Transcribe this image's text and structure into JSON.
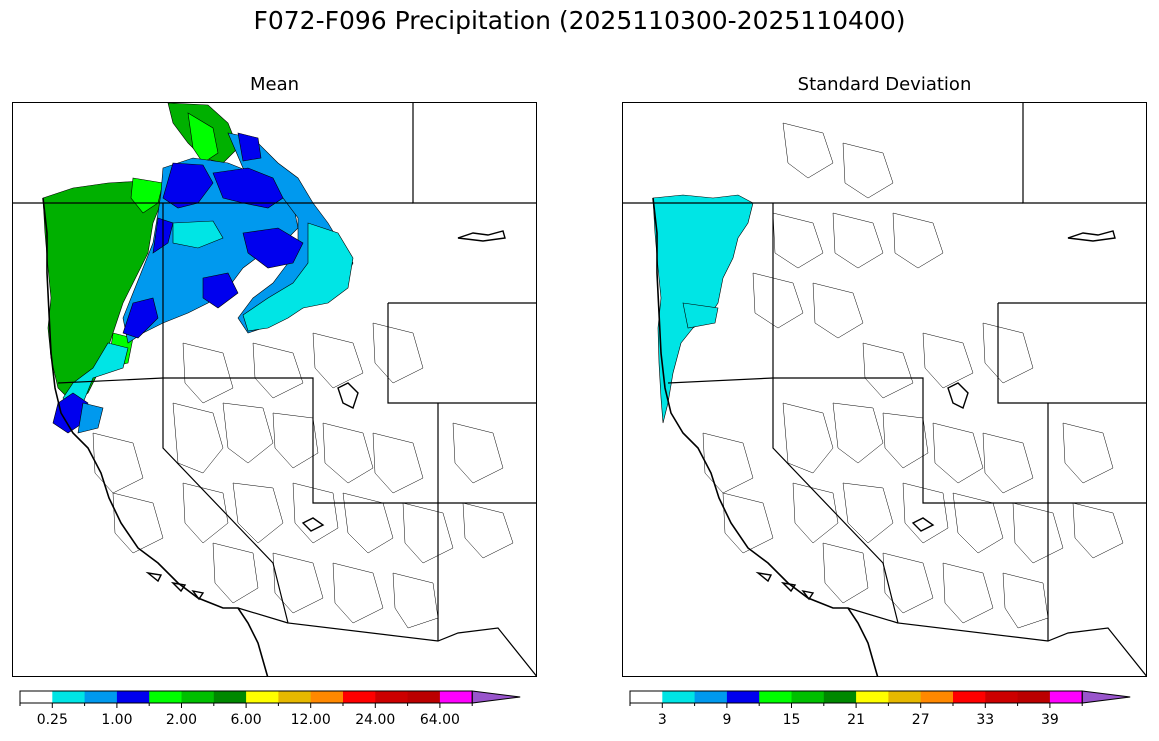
{
  "figure": {
    "title": "F072-F096 Precipitation (2025110300-2025110400)"
  },
  "panels": [
    {
      "title": "Mean",
      "colorbar": {
        "colors": [
          "#ffffff",
          "#00e5e5",
          "#0099ee",
          "#0000ee",
          "#00ff00",
          "#00c000",
          "#008800",
          "#ffff00",
          "#e6b800",
          "#ff8800",
          "#ff0000",
          "#cc0000",
          "#bb0000",
          "#ff00ff",
          "#9955cc"
        ],
        "tick_labels": [
          "0.25",
          "1.00",
          "2.00",
          "6.00",
          "12.00",
          "24.00",
          "64.00"
        ],
        "extend": "max"
      }
    },
    {
      "title": "Standard Deviation",
      "colorbar": {
        "colors": [
          "#ffffff",
          "#00e5e5",
          "#0099ee",
          "#0000ee",
          "#00ff00",
          "#00c000",
          "#008800",
          "#ffff00",
          "#e6b800",
          "#ff8800",
          "#ff0000",
          "#cc0000",
          "#bb0000",
          "#ff00ff",
          "#9955cc"
        ],
        "tick_labels": [
          "3",
          "9",
          "15",
          "21",
          "27",
          "33",
          "39"
        ],
        "extend": "max"
      }
    }
  ]
}
